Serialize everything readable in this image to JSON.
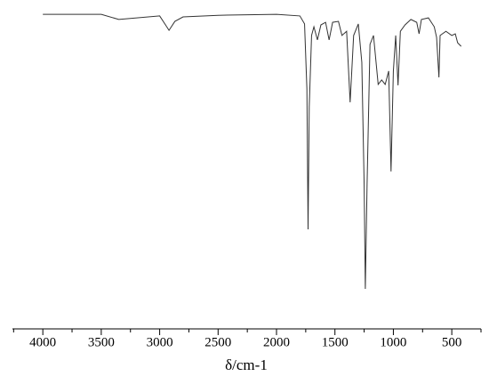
{
  "chart_data": {
    "type": "line",
    "x_label": "δ/cm-1",
    "xlim": [
      4260,
      250
    ],
    "xticks": [
      4000,
      3500,
      3000,
      2500,
      2000,
      1500,
      1000,
      500
    ],
    "xminorticks": [
      4250,
      3750,
      3250,
      2750,
      2250,
      1750,
      1250,
      750,
      250
    ],
    "ylim": [
      0,
      100
    ],
    "color": "#333333",
    "x": [
      4000,
      3500,
      3350,
      3000,
      2950,
      2920,
      2870,
      2800,
      2500,
      2000,
      1800,
      1760,
      1740,
      1730,
      1720,
      1700,
      1680,
      1650,
      1620,
      1580,
      1550,
      1520,
      1470,
      1440,
      1400,
      1370,
      1340,
      1300,
      1270,
      1250,
      1240,
      1225,
      1200,
      1170,
      1130,
      1100,
      1070,
      1040,
      1020,
      1000,
      980,
      960,
      940,
      900,
      850,
      800,
      780,
      760,
      700,
      650,
      630,
      610,
      600,
      550,
      500,
      470,
      450,
      420
    ],
    "values": [
      98.3,
      98.3,
      96.7,
      97.8,
      95,
      93.3,
      96.1,
      97.5,
      98,
      98.3,
      97.8,
      95.3,
      75,
      31.1,
      69.4,
      91.7,
      94.4,
      90.3,
      95,
      95.8,
      90.3,
      95.8,
      96.1,
      91.7,
      93,
      70.8,
      91.7,
      95.3,
      83.3,
      45,
      12.5,
      45,
      88.9,
      91.7,
      76.4,
      77.8,
      76.4,
      80.6,
      49.2,
      80.6,
      91.7,
      76.1,
      93,
      95,
      96.7,
      95.8,
      92.2,
      96.7,
      97.2,
      94.4,
      91.1,
      78.6,
      91.7,
      93,
      91.7,
      92.2,
      89.4,
      88.3
    ]
  }
}
